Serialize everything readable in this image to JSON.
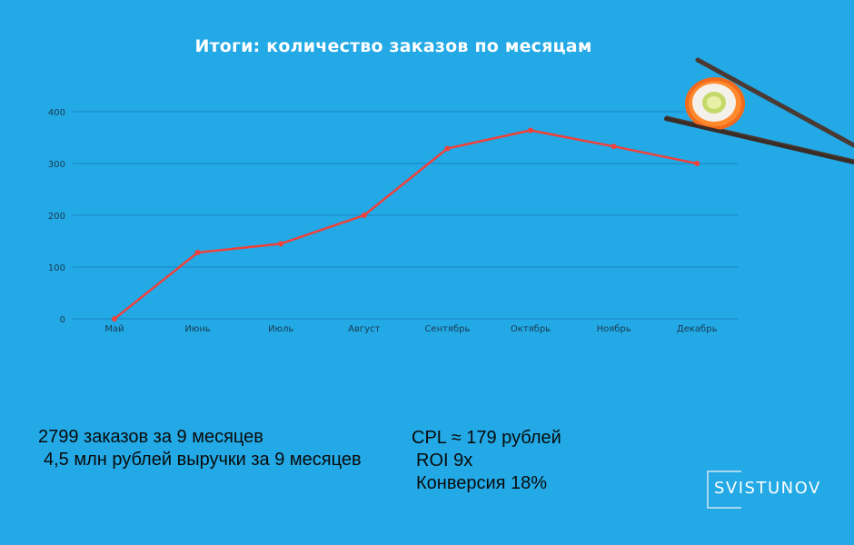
{
  "chart_data": {
    "type": "line",
    "title": "Итоги: количество заказов по месяцам",
    "categories": [
      "Май",
      "Июнь",
      "Июль",
      "Август",
      "Сентябрь",
      "Октябрь",
      "Ноябрь",
      "Декабрь"
    ],
    "series": [
      {
        "values": [
          0,
          128,
          145,
          200,
          329,
          364,
          333,
          300
        ],
        "color": "#f0413a"
      }
    ],
    "ylim": [
      0,
      400
    ],
    "yticks": [
      0,
      100,
      200,
      300,
      400
    ],
    "grid": true,
    "gridColor": "#1a87c4"
  },
  "stats": {
    "orders": "2799 заказов за 9 месяцев",
    "revenue": "4,5 млн рублей выручки за 9 месяцев",
    "cpl": "CPL ≈ 179 рублей",
    "roi": "ROI 9x",
    "conversion": "Конверсия 18%"
  },
  "logo": {
    "text": "SVISTUNOV"
  },
  "decoration": {
    "icon": "sushi-roll-chopsticks-icon"
  }
}
